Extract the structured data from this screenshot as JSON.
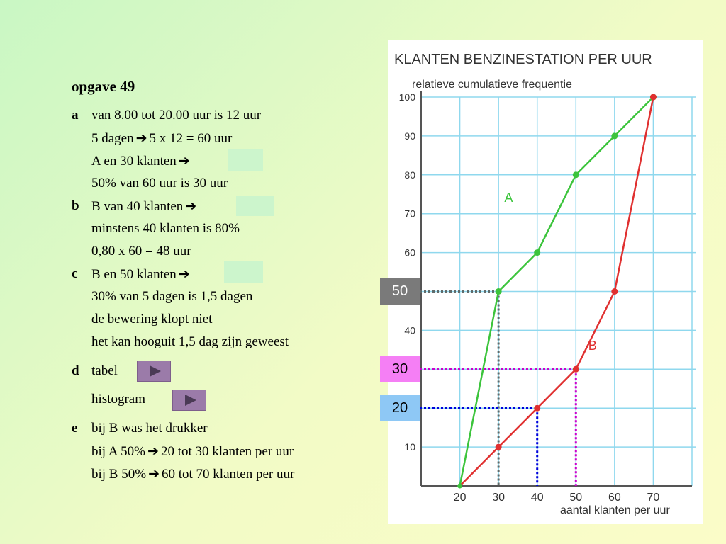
{
  "left": {
    "title": "opgave 49",
    "a": {
      "label": "a",
      "lines": [
        "van 8.00 tot 20.00 uur is 12 uur",
        "5 dagen",
        "5 x 12 = 60 uur",
        "A en 30 klanten",
        "50% van 60 uur is 30 uur"
      ]
    },
    "b": {
      "label": "b",
      "lines": [
        "B van 40 klanten",
        "minstens 40 klanten is 80%",
        "0,80 x 60 = 48 uur"
      ]
    },
    "c": {
      "label": "c",
      "lines": [
        "B en 50 klanten",
        "30% van 5 dagen is 1,5 dagen",
        "de bewering klopt niet",
        "het kan hooguit 1,5 dag zijn geweest"
      ]
    },
    "d": {
      "label": "d",
      "tabel": "tabel",
      "histogram": "histogram"
    },
    "e": {
      "label": "e",
      "lines": [
        "bij B was het drukker",
        "bij A 50%",
        "20 tot 30 klanten per uur",
        "bij B 50%",
        "60 tot 70 klanten per uur"
      ]
    },
    "arrow_glyph": "➔"
  },
  "chart_data": {
    "type": "line",
    "title": "KLANTEN BENZINESTATION PER UUR",
    "ylabel": "relatieve cumulatieve frequentie",
    "xlabel": "aantal klanten per uur",
    "x": [
      20,
      30,
      40,
      50,
      60,
      70
    ],
    "x_ticks": [
      "20",
      "30",
      "40",
      "50",
      "60",
      "70"
    ],
    "y_ticks": [
      "10",
      "20",
      "30",
      "40",
      "50",
      "60",
      "70",
      "80",
      "90",
      "100"
    ],
    "xlim": [
      10,
      80
    ],
    "ylim": [
      0,
      100
    ],
    "grid": true,
    "series": [
      {
        "name": "A",
        "color": "#3cc43c",
        "values": [
          0,
          50,
          60,
          80,
          90,
          100
        ]
      },
      {
        "name": "B",
        "color": "#e03030",
        "values": [
          0,
          10,
          20,
          30,
          50,
          100
        ]
      }
    ],
    "annotations": [
      {
        "label": "50",
        "y": 50,
        "x_to": 30,
        "line_color": "#606b6b",
        "tag_bg": "#7a7a7a",
        "tag_text_color": "#ffffff"
      },
      {
        "label": "30",
        "y": 30,
        "x_to": 50,
        "line_color": "#cc00cc",
        "tag_bg": "#f57ff5",
        "tag_text_color": "#000000"
      },
      {
        "label": "20",
        "y": 20,
        "x_to": 40,
        "line_color": "#0000dd",
        "tag_bg": "#8ec8f5",
        "tag_text_color": "#000000"
      }
    ]
  }
}
